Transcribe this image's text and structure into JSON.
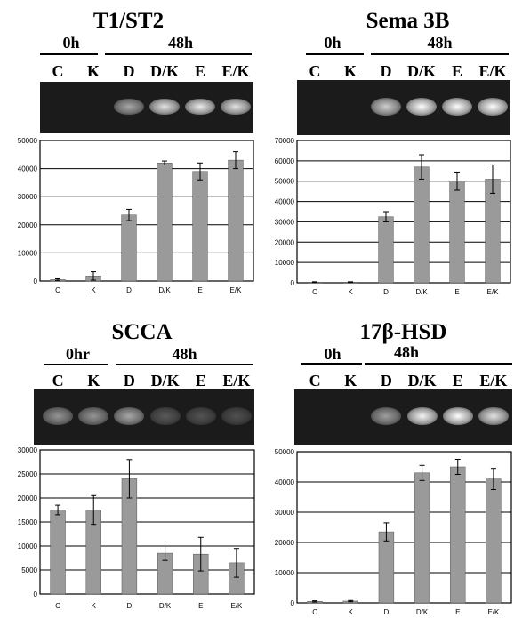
{
  "colors": {
    "bar": "#9a9a9a",
    "gel": "#1b1b1b",
    "axis": "#000000"
  },
  "panels": [
    {
      "title": "T1/ST2",
      "groups": [
        {
          "label": "0h"
        },
        {
          "label": "48h"
        }
      ],
      "lanes": [
        "C",
        "K",
        "D",
        "D/K",
        "E",
        "E/K"
      ],
      "band_intensity": [
        0,
        0,
        0.55,
        0.85,
        0.9,
        0.85
      ],
      "chart_data": {
        "type": "bar",
        "categories": [
          "C",
          "K",
          "D",
          "D/K",
          "E",
          "E/K"
        ],
        "values": [
          500,
          1800,
          23500,
          42000,
          39000,
          43000
        ],
        "errors": [
          300,
          1500,
          2000,
          700,
          3000,
          3000
        ],
        "yticks": [
          "50000",
          "40000",
          "30000",
          "20000",
          "10000",
          "0"
        ],
        "ylim": [
          0,
          50000
        ],
        "grid": true,
        "title": "",
        "xlabel": "",
        "ylabel": ""
      }
    },
    {
      "title": "Sema 3B",
      "groups": [
        {
          "label": "0h"
        },
        {
          "label": "48h"
        }
      ],
      "lanes": [
        "C",
        "K",
        "D",
        "D/K",
        "E",
        "E/K"
      ],
      "band_intensity": [
        0,
        0,
        0.75,
        1.0,
        1.0,
        1.0
      ],
      "chart_data": {
        "type": "bar",
        "categories": [
          "C",
          "K",
          "D",
          "D/K",
          "E",
          "E/K"
        ],
        "values": [
          300,
          300,
          32500,
          57000,
          50000,
          51000
        ],
        "errors": [
          200,
          200,
          2500,
          6000,
          4500,
          7000
        ],
        "yticks": [
          "70000",
          "60000",
          "50000",
          "40000",
          "30000",
          "20000",
          "10000",
          "0"
        ],
        "ylim": [
          0,
          70000
        ],
        "grid": true,
        "title": "",
        "xlabel": "",
        "ylabel": ""
      }
    },
    {
      "title": "SCCA",
      "groups": [
        {
          "label": "0hr"
        },
        {
          "label": "48h"
        }
      ],
      "lanes": [
        "C",
        "K",
        "D",
        "D/K",
        "E",
        "E/K"
      ],
      "band_intensity": [
        0.45,
        0.45,
        0.55,
        0.15,
        0.12,
        0.1
      ],
      "chart_data": {
        "type": "bar",
        "categories": [
          "C",
          "K",
          "D",
          "D/K",
          "E",
          "E/K"
        ],
        "values": [
          17500,
          17500,
          24000,
          8500,
          8300,
          6500
        ],
        "errors": [
          1000,
          3000,
          4000,
          1500,
          3500,
          3000
        ],
        "yticks": [
          "30000",
          "25000",
          "20000",
          "15000",
          "10000",
          "5000",
          "0"
        ],
        "ylim": [
          0,
          30000
        ],
        "grid": true,
        "title": "",
        "xlabel": "",
        "ylabel": ""
      }
    },
    {
      "title": "17β-HSD",
      "groups": [
        {
          "label": "0h"
        },
        {
          "label": "48h"
        }
      ],
      "lanes": [
        "C",
        "K",
        "D",
        "D/K",
        "E",
        "E/K"
      ],
      "band_intensity": [
        0,
        0,
        0.5,
        0.95,
        1.0,
        0.85
      ],
      "chart_data": {
        "type": "bar",
        "categories": [
          "C",
          "K",
          "D",
          "D/K",
          "E",
          "E/K"
        ],
        "values": [
          500,
          600,
          23500,
          43000,
          45000,
          41000
        ],
        "errors": [
          200,
          200,
          3000,
          2500,
          2500,
          3500
        ],
        "yticks": [
          "50000",
          "40000",
          "30000",
          "20000",
          "10000",
          "0"
        ],
        "ylim": [
          0,
          50000
        ],
        "grid": true,
        "title": "",
        "xlabel": "",
        "ylabel": ""
      }
    }
  ]
}
